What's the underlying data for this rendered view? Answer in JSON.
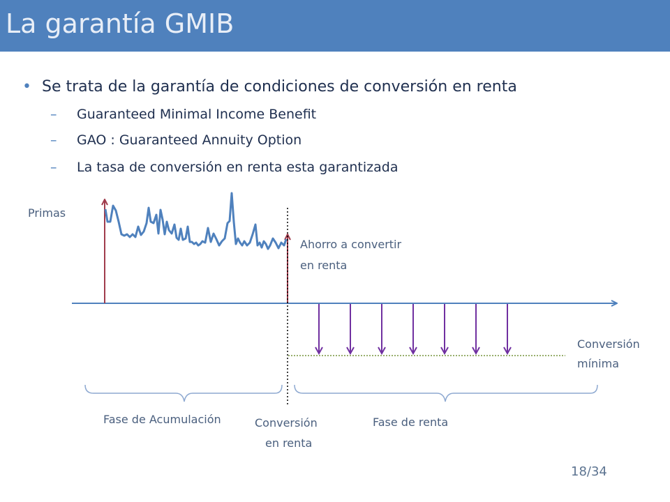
{
  "slide": {
    "title": "La garantía GMIB",
    "bullet": "Se trata de la garantía de condiciones de conversión en renta",
    "sub_bullets": [
      "Guaranteed Minimal Income Benefit",
      "GAO : Guaranteed Annuity Option",
      "La tasa de conversión en renta esta garantizada"
    ],
    "page": "18/34"
  },
  "diagram": {
    "primas": "Primas",
    "ahorro_1": "Ahorro a convertir",
    "ahorro_2": "en renta",
    "conv_min_1": "Conversión",
    "conv_min_2": "mínima",
    "fase_acum": "Fase de Acumulación",
    "conv_renta_1": "Conversión",
    "conv_renta_2": "en renta",
    "fase_renta": "Fase de renta",
    "colors": {
      "timeline": "#4f81bd",
      "premium_arrow": "#a03c4c",
      "annuity_arrows": "#7030a0",
      "min_line": "#77933c",
      "brace": "#8ea9d1"
    },
    "annuity_payment_count": 7
  }
}
